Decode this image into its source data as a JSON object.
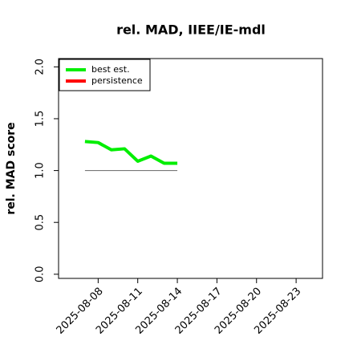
{
  "chart_data": {
    "type": "line",
    "title": "rel. MAD, IIEE/IE-mdl",
    "y_label": "rel. MAD score",
    "x": [
      "2025-08-07",
      "2025-08-08",
      "2025-08-09",
      "2025-08-10",
      "2025-08-11",
      "2025-08-12",
      "2025-08-13",
      "2025-08-14"
    ],
    "series": [
      {
        "name": "best est.",
        "color": "#00ee00",
        "values": [
          1.28,
          1.27,
          1.2,
          1.21,
          1.09,
          1.14,
          1.07,
          1.07
        ]
      },
      {
        "name": "persistence",
        "color": "#ff0000",
        "values": [
          null,
          null,
          null,
          null,
          null,
          null,
          null,
          null
        ]
      }
    ],
    "hline": {
      "y": 1.0,
      "color": "#777777"
    },
    "xlim": [
      "2025-08-05",
      "2025-08-25"
    ],
    "xticks": [
      "2025-08-08",
      "2025-08-11",
      "2025-08-14",
      "2025-08-17",
      "2025-08-20",
      "2025-08-23"
    ],
    "ylim": [
      -0.04,
      2.08
    ],
    "yticks": [
      {
        "value": 0,
        "label": "0.0"
      },
      0.5,
      {
        "value": 1,
        "label": "1.0"
      },
      1.5,
      {
        "value": 2,
        "label": "2.0"
      }
    ],
    "legend": "top-left"
  }
}
